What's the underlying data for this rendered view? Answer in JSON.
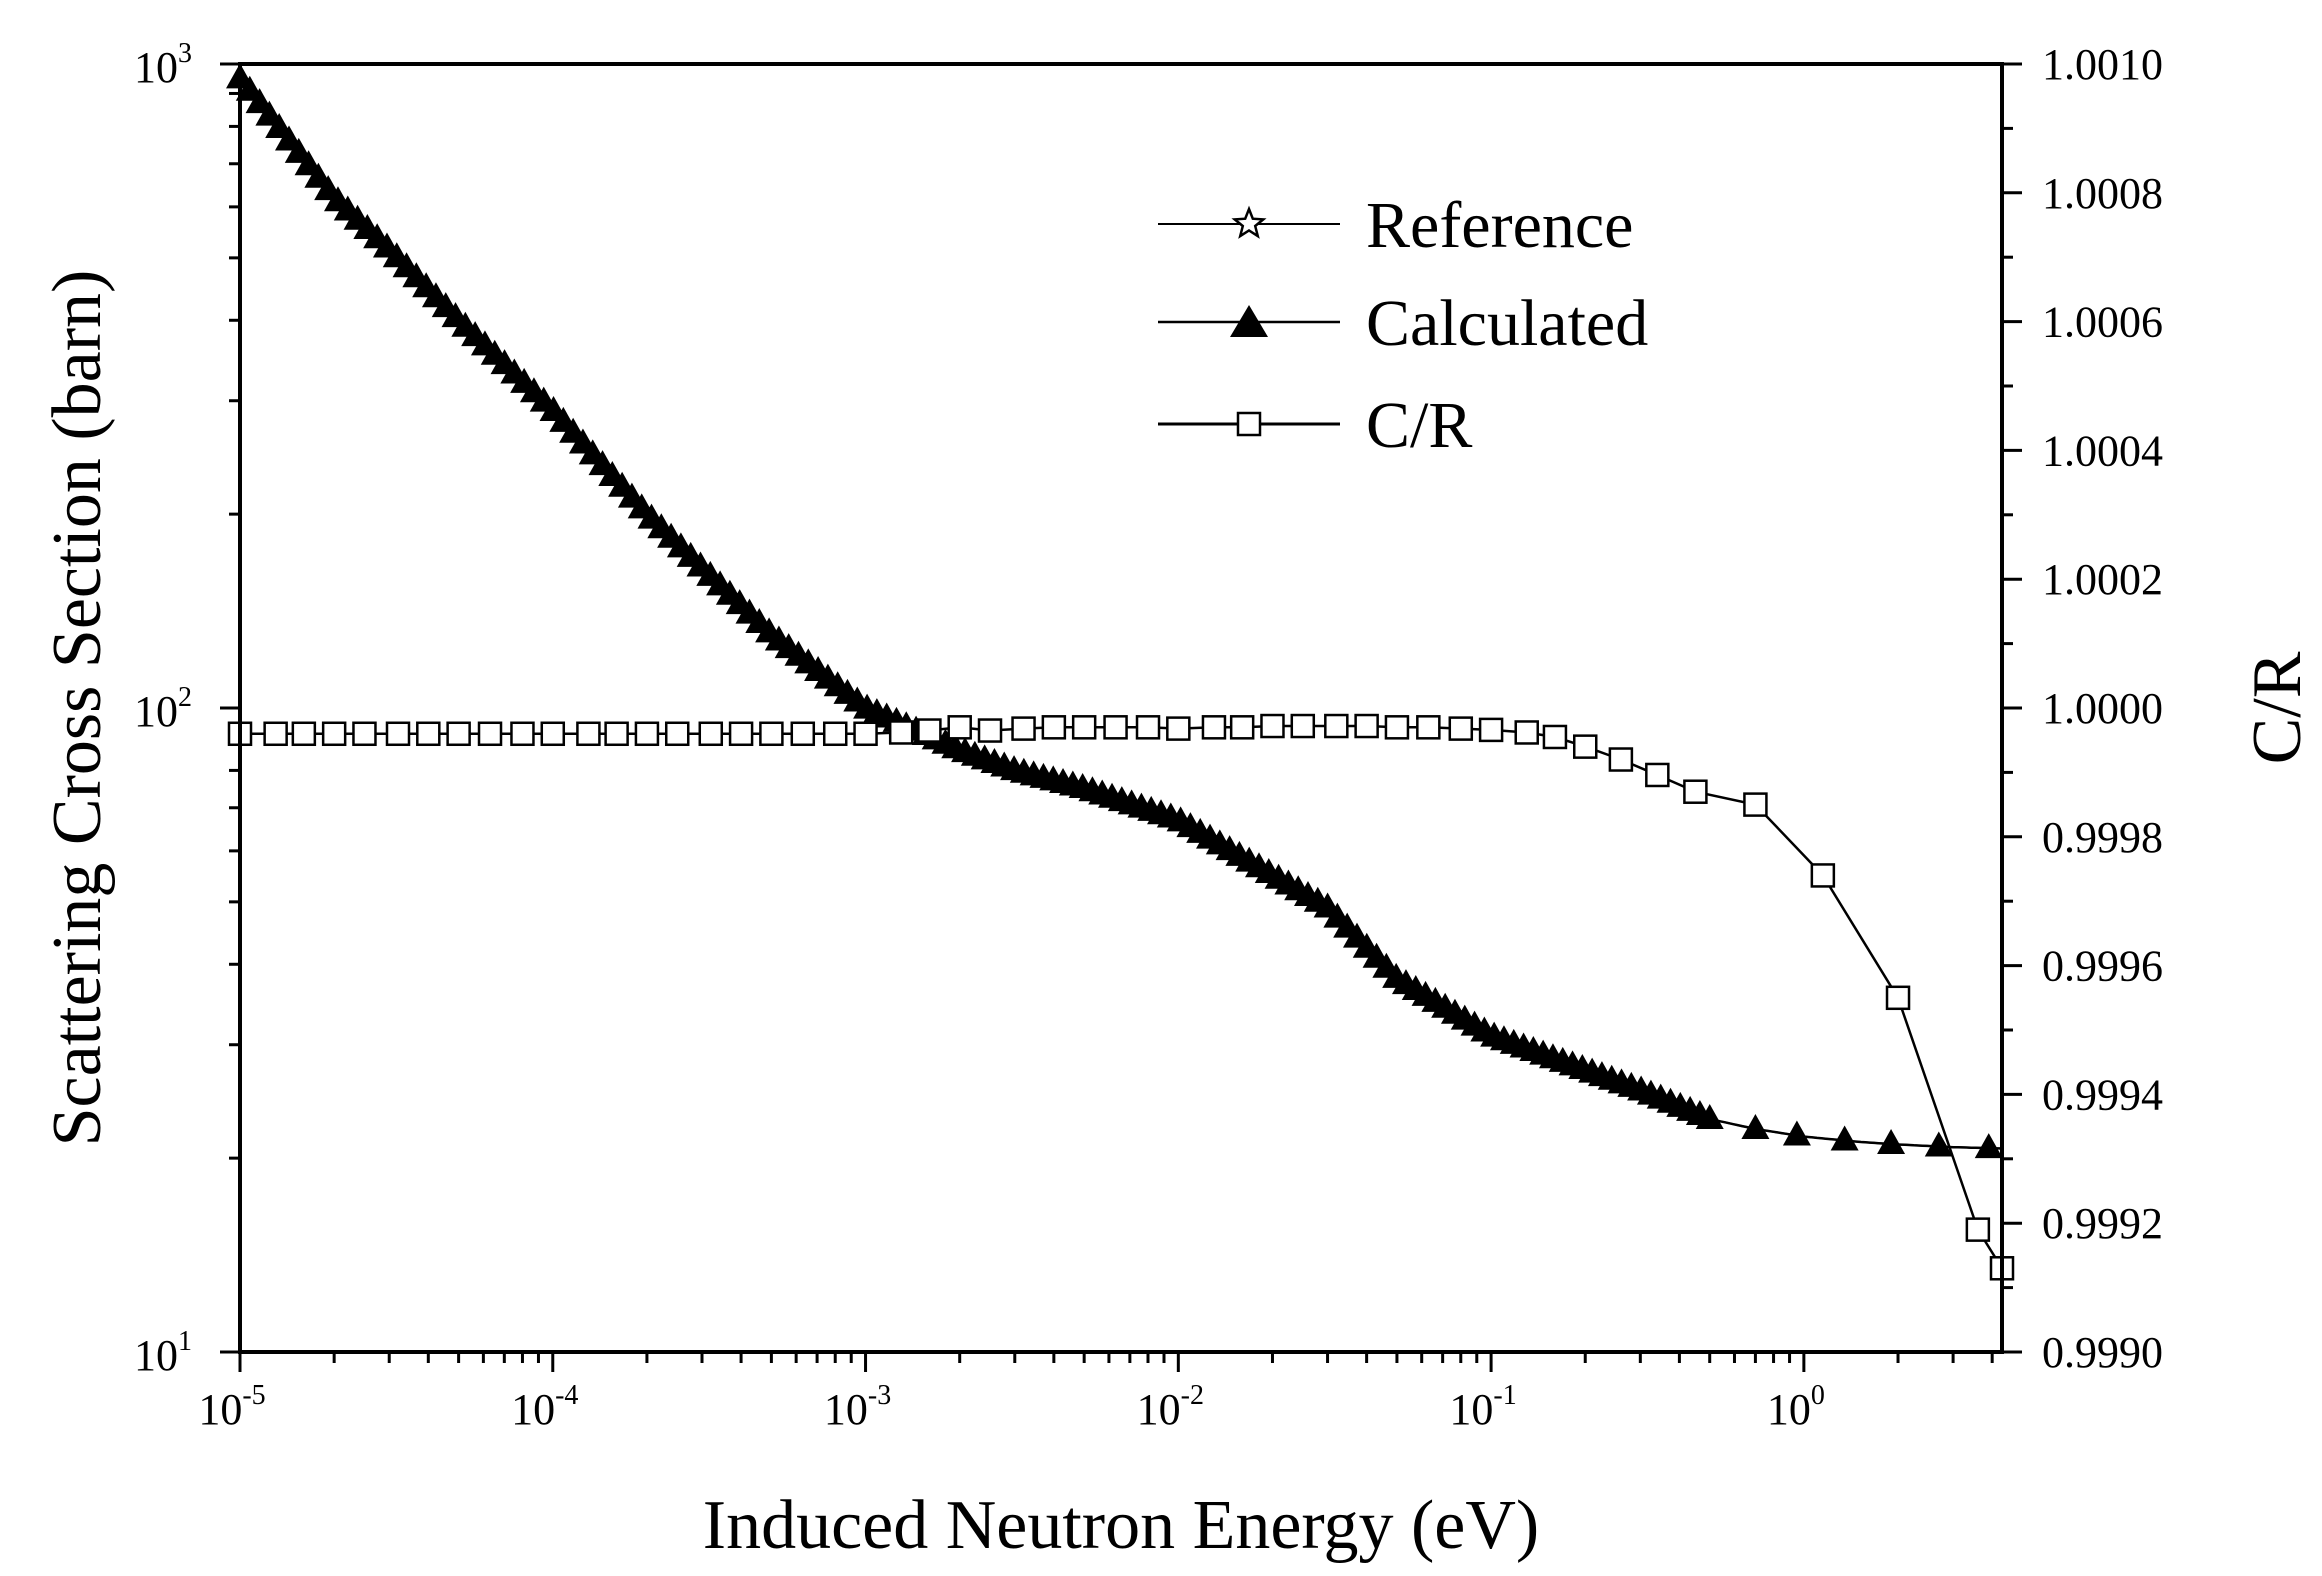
{
  "chart_data": {
    "type": "line",
    "title": "",
    "xlabel": "Induced Neutron Energy (eV)",
    "ylabel_left": "Scattering Cross Section (barn)",
    "ylabel_right": "C/R",
    "x_scale": "log",
    "y_left_scale": "log",
    "xlim": [
      1e-05,
      4.3
    ],
    "ylim_left": [
      10,
      1000
    ],
    "ylim_right": [
      0.999,
      1.001
    ],
    "x_ticks": [
      {
        "base": "10",
        "exp": "-5"
      },
      {
        "base": "10",
        "exp": "-4"
      },
      {
        "base": "10",
        "exp": "-3"
      },
      {
        "base": "10",
        "exp": "-2"
      },
      {
        "base": "10",
        "exp": "-1"
      },
      {
        "base": "10",
        "exp": "0"
      }
    ],
    "y_left_ticks": [
      {
        "base": "10",
        "exp": "1"
      },
      {
        "base": "10",
        "exp": "2"
      },
      {
        "base": "10",
        "exp": "3"
      }
    ],
    "y_right_ticks": [
      "0.9990",
      "0.9992",
      "0.9994",
      "0.9996",
      "0.9998",
      "1.0000",
      "1.0002",
      "1.0004",
      "1.0006",
      "1.0008",
      "1.0010"
    ],
    "legend": {
      "placement": "top-right",
      "entries": [
        {
          "label": "Reference",
          "marker": "open-star"
        },
        {
          "label": "Calculated",
          "marker": "filled-triangle"
        },
        {
          "label": "C/R",
          "marker": "open-square"
        }
      ]
    },
    "series": [
      {
        "name": "Reference",
        "axis": "left",
        "x": [
          1e-05,
          2e-05,
          3e-05,
          5e-05,
          0.0001,
          0.0002,
          0.0003,
          0.0005,
          0.001,
          0.002,
          0.003,
          0.005,
          0.01,
          0.02,
          0.03,
          0.05,
          0.1,
          0.2,
          0.3,
          0.5,
          0.7,
          1,
          1.5,
          2,
          3,
          4.3
        ],
        "y": [
          950,
          620,
          515,
          400,
          290,
          200,
          165,
          130,
          100,
          86,
          80,
          75,
          67,
          55,
          49,
          38,
          31,
          27.4,
          25.5,
          23,
          22.2,
          21.6,
          21.2,
          21,
          20.8,
          20.7
        ]
      },
      {
        "name": "Calculated",
        "axis": "left",
        "x": [
          1e-05,
          2e-05,
          3e-05,
          5e-05,
          0.0001,
          0.0002,
          0.0003,
          0.0005,
          0.001,
          0.002,
          0.003,
          0.005,
          0.01,
          0.02,
          0.03,
          0.05,
          0.1,
          0.2,
          0.3,
          0.5,
          0.7,
          1,
          1.5,
          2,
          3,
          4.3
        ],
        "y": [
          950,
          620,
          515,
          400,
          290,
          200,
          165,
          130,
          100,
          86,
          80,
          75,
          67,
          55,
          49,
          38,
          31,
          27.4,
          25.5,
          23,
          22.2,
          21.6,
          21.2,
          21,
          20.8,
          20.7
        ]
      },
      {
        "name": "C/R",
        "axis": "right",
        "x": [
          1e-05,
          1.3e-05,
          1.6e-05,
          2e-05,
          2.5e-05,
          3.2e-05,
          4e-05,
          5e-05,
          6.3e-05,
          8e-05,
          0.0001,
          0.00013,
          0.00016,
          0.0002,
          0.00025,
          0.00032,
          0.0004,
          0.0005,
          0.00063,
          0.0008,
          0.001,
          0.0013,
          0.0016,
          0.002,
          0.0025,
          0.0032,
          0.004,
          0.005,
          0.0063,
          0.008,
          0.01,
          0.013,
          0.016,
          0.02,
          0.025,
          0.032,
          0.04,
          0.05,
          0.063,
          0.08,
          0.1,
          0.13,
          0.16,
          0.2,
          0.26,
          0.34,
          0.45,
          0.7,
          1.15,
          2,
          3.6,
          4.3
        ],
        "y": [
          0.99996,
          0.99996,
          0.99996,
          0.99996,
          0.99996,
          0.99996,
          0.99996,
          0.99996,
          0.99996,
          0.99996,
          0.99996,
          0.99996,
          0.99996,
          0.99996,
          0.99996,
          0.99996,
          0.99996,
          0.99996,
          0.99996,
          0.99996,
          0.99996,
          0.999962,
          0.999965,
          0.99997,
          0.999965,
          0.999968,
          0.99997,
          0.99997,
          0.99997,
          0.99997,
          0.999968,
          0.99997,
          0.99997,
          0.999972,
          0.999972,
          0.999972,
          0.999972,
          0.99997,
          0.99997,
          0.999968,
          0.999966,
          0.999962,
          0.999955,
          0.99994,
          0.99992,
          0.999896,
          0.99987,
          0.99985,
          0.99974,
          0.99955,
          0.99919,
          0.99913
        ]
      }
    ]
  }
}
